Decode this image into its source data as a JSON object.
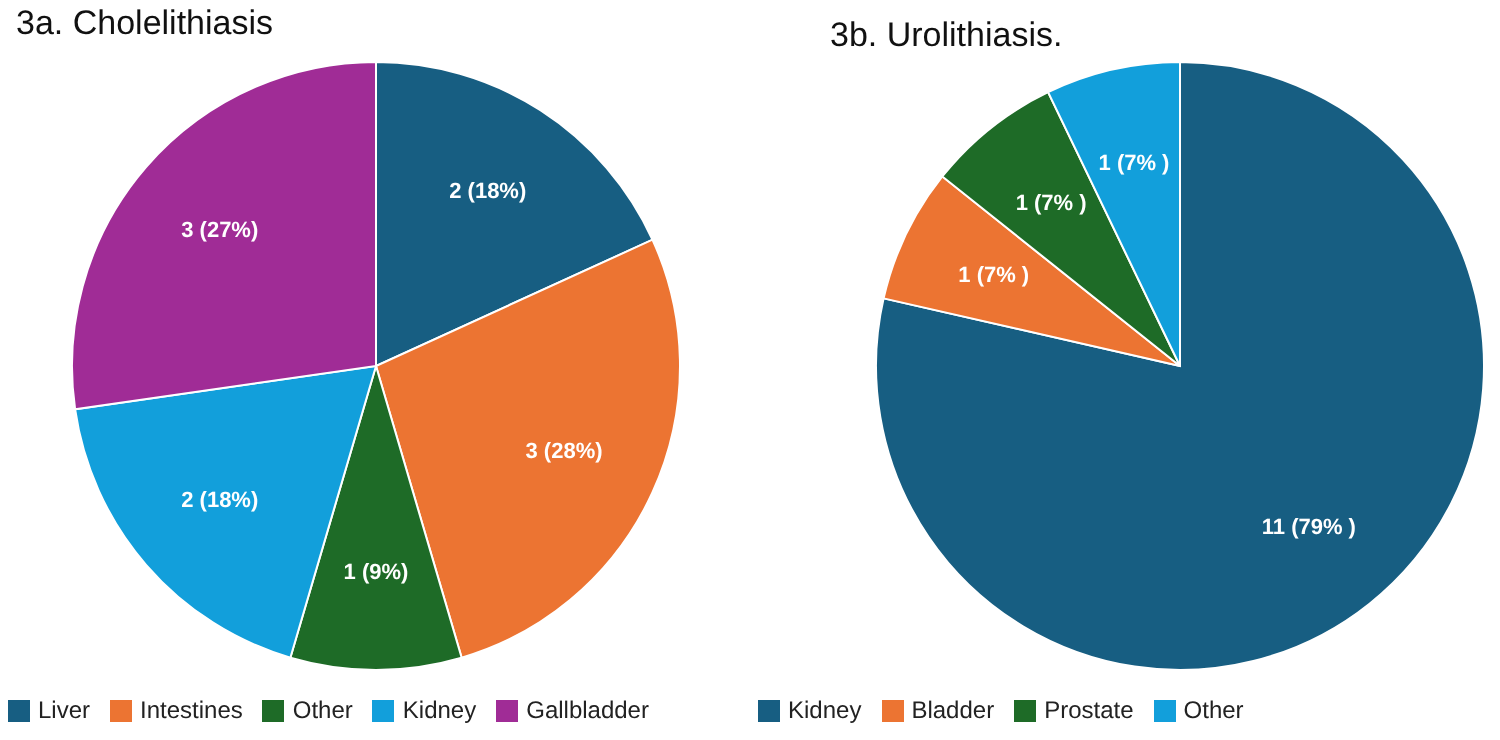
{
  "chart_data": [
    {
      "type": "pie",
      "title": "3a. Cholelithiasis",
      "categories": [
        "Liver",
        "Intestines",
        "Other",
        "Kidney",
        "Gallbladder"
      ],
      "values": [
        2,
        3,
        1,
        2,
        3
      ],
      "colors": [
        "#175e82",
        "#ec7432",
        "#1e6b27",
        "#129fdb",
        "#a02c96"
      ],
      "value_labels": [
        "2 (18%)",
        "3 (28%)",
        "1 (9%)",
        "2 (18%)",
        "3 (27%)"
      ],
      "legend": "bottom"
    },
    {
      "type": "pie",
      "title": "3b. Urolithiasis.",
      "categories": [
        "Kidney",
        "Bladder",
        "Prostate",
        "Other"
      ],
      "values": [
        11,
        1,
        1,
        1
      ],
      "colors": [
        "#175e82",
        "#ec7432",
        "#1e6b27",
        "#129fdb"
      ],
      "value_labels": [
        "11 (79% )",
        "1 (7% )",
        "1 (7% )",
        "1 (7% )"
      ],
      "legend": "bottom"
    }
  ]
}
